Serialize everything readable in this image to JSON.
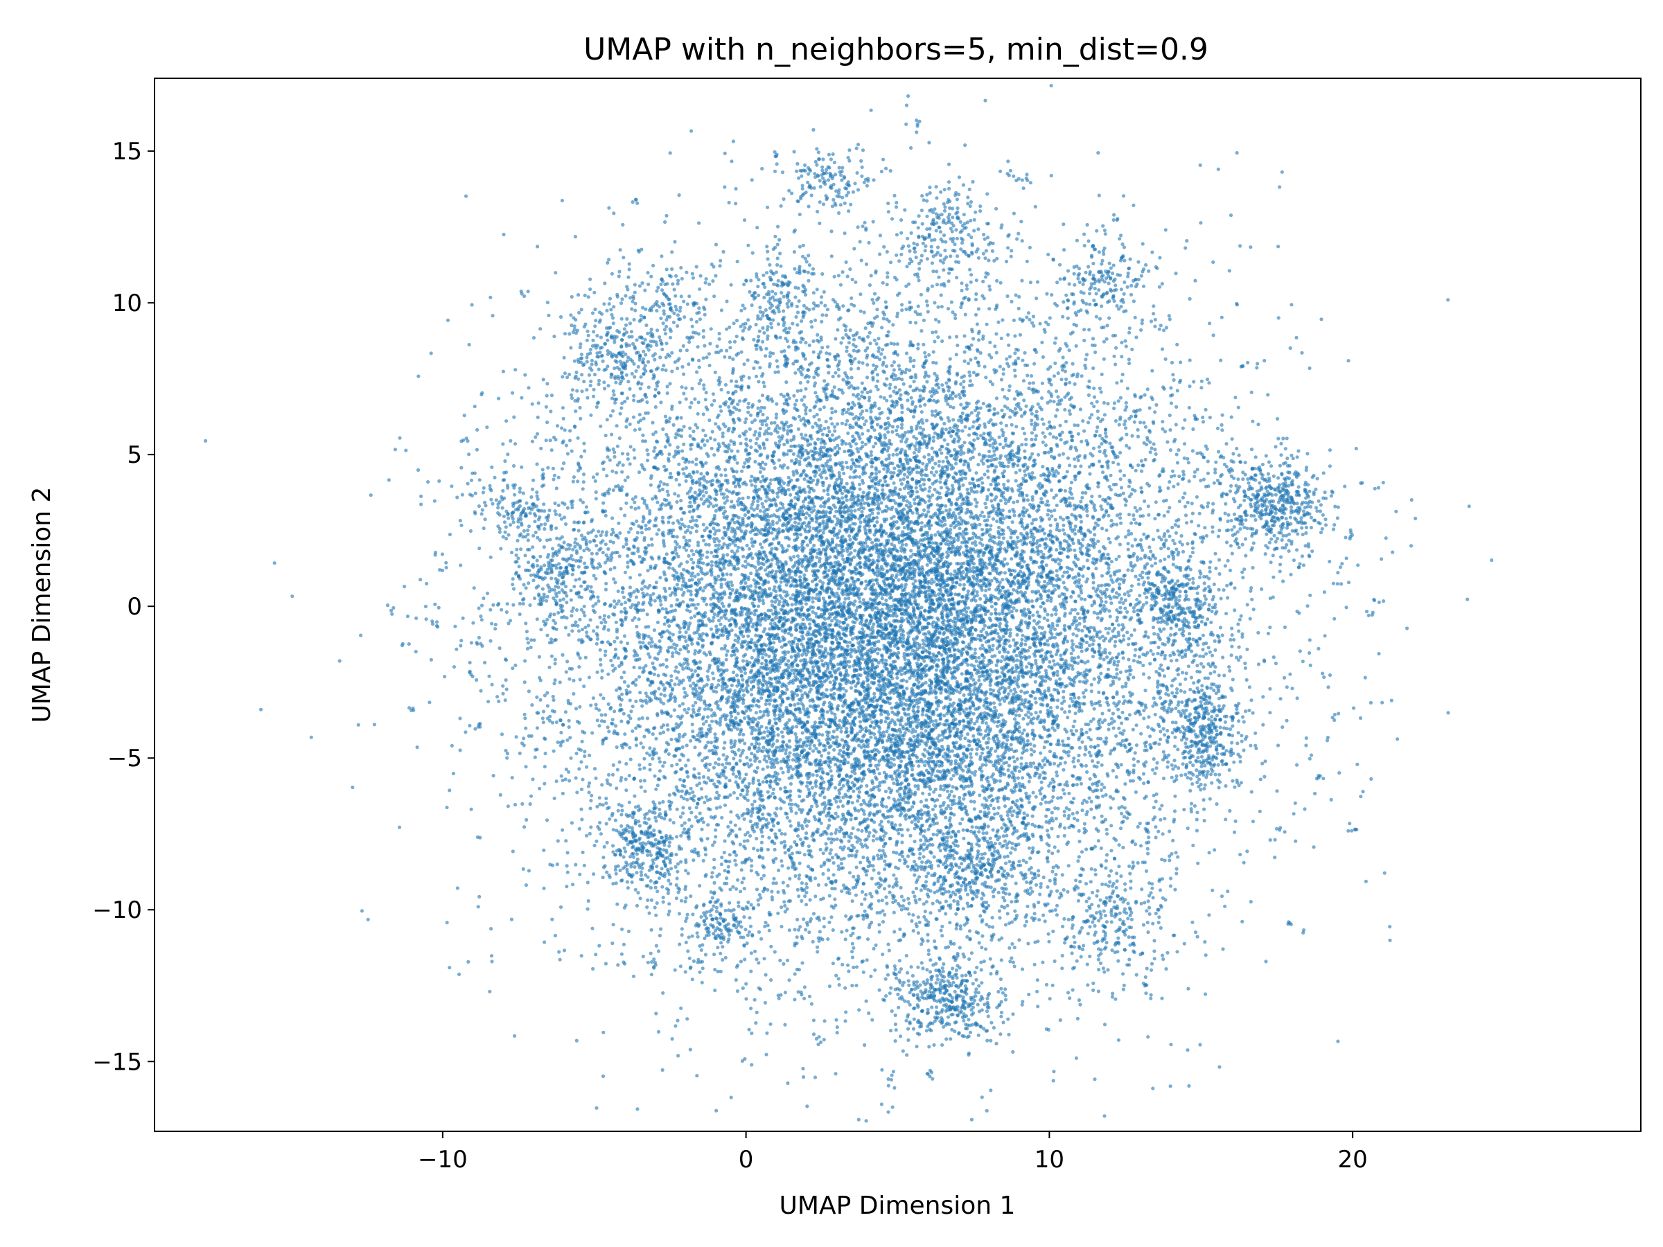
{
  "chart_data": {
    "type": "scatter",
    "title": "UMAP with n_neighbors=5, min_dist=0.9",
    "xlabel": "UMAP Dimension 1",
    "ylabel": "UMAP Dimension 2",
    "xlim": [
      -19.5,
      29.5
    ],
    "ylim": [
      -17.3,
      17.4
    ],
    "xticks": [
      -10,
      0,
      10,
      20
    ],
    "yticks": [
      -15,
      -10,
      -5,
      0,
      5,
      10,
      15
    ],
    "xtick_labels": [
      "−10",
      "0",
      "10",
      "20"
    ],
    "ytick_labels": [
      "−15",
      "−10",
      "−5",
      "0",
      "5",
      "10",
      "15"
    ],
    "grid": false,
    "legend": "none",
    "marker_color": "#1f77b4",
    "marker_alpha": 0.6,
    "series": [
      {
        "color": "#1f77b4",
        "description_points": "dense cloud centered near (4.5, -0.5) with radius ~10, plus satellite clusters",
        "main_cloud": {
          "center": [
            4.5,
            -0.5
          ],
          "sd": [
            4.6,
            4.6
          ],
          "count": 18000
        },
        "clusters": [
          {
            "center": [
              17.5,
              3.3
            ],
            "sd": [
              0.9,
              0.8
            ],
            "count": 450
          },
          {
            "center": [
              15.1,
              -4.2
            ],
            "sd": [
              0.6,
              0.9
            ],
            "count": 350
          },
          {
            "center": [
              14.3,
              0.0
            ],
            "sd": [
              0.7,
              1.0
            ],
            "count": 300
          },
          {
            "center": [
              6.6,
              -12.9
            ],
            "sd": [
              1.0,
              0.7
            ],
            "count": 350
          },
          {
            "center": [
              -3.3,
              -7.9
            ],
            "sd": [
              0.6,
              0.7
            ],
            "count": 250
          },
          {
            "center": [
              -4.3,
              8.3
            ],
            "sd": [
              0.9,
              0.9
            ],
            "count": 250
          },
          {
            "center": [
              -7.7,
              3.2
            ],
            "sd": [
              0.7,
              0.6
            ],
            "count": 120
          },
          {
            "center": [
              -6.2,
              1.0
            ],
            "sd": [
              0.9,
              0.9
            ],
            "count": 250
          },
          {
            "center": [
              2.6,
              14.1
            ],
            "sd": [
              0.7,
              0.5
            ],
            "count": 120
          },
          {
            "center": [
              6.5,
              12.3
            ],
            "sd": [
              0.9,
              0.9
            ],
            "count": 200
          },
          {
            "center": [
              11.8,
              10.8
            ],
            "sd": [
              0.7,
              0.7
            ],
            "count": 150
          },
          {
            "center": [
              12.1,
              -10.5
            ],
            "sd": [
              0.8,
              0.9
            ],
            "count": 200
          },
          {
            "center": [
              7.5,
              -8.8
            ],
            "sd": [
              1.0,
              1.0
            ],
            "count": 300
          },
          {
            "center": [
              -0.9,
              -10.4
            ],
            "sd": [
              0.5,
              0.5
            ],
            "count": 120
          },
          {
            "center": [
              1.2,
              10.2
            ],
            "sd": [
              0.7,
              0.8
            ],
            "count": 150
          },
          {
            "center": [
              -2.6,
              9.8
            ],
            "sd": [
              0.8,
              0.8
            ],
            "count": 120
          }
        ],
        "isolated_points": [
          [
            5.7,
            15.9
          ],
          [
            -3.7,
            13.3
          ],
          [
            -7.3,
            10.3
          ],
          [
            -11.7,
            -0.1
          ],
          [
            -11.0,
            -3.4
          ],
          [
            -10.0,
            1.3
          ],
          [
            -10.3,
            -0.6
          ],
          [
            -9.3,
            5.5
          ],
          [
            -9.1,
            -2.2
          ],
          [
            -8.8,
            -4.0
          ],
          [
            20.8,
            0.1
          ],
          [
            20.5,
            -0.2
          ],
          [
            20.0,
            2.3
          ],
          [
            19.4,
            -3.6
          ],
          [
            18.9,
            -5.7
          ],
          [
            17.9,
            -10.5
          ],
          [
            17.6,
            -7.4
          ],
          [
            20.1,
            -7.4
          ],
          [
            16.4,
            7.9
          ],
          [
            15.2,
            7.4
          ],
          [
            13.8,
            9.1
          ],
          [
            14.8,
            6.2
          ],
          [
            4.7,
            -15.6
          ],
          [
            6.1,
            -15.4
          ],
          [
            2.4,
            -14.3
          ],
          [
            -4.1,
            -11.7
          ],
          [
            -3.0,
            -11.8
          ],
          [
            -1.5,
            -11.7
          ],
          [
            1.1,
            -12.9
          ],
          [
            1.8,
            -12.7
          ],
          [
            8.6,
            14.3
          ],
          [
            9.2,
            14.1
          ],
          [
            0.9,
            14.9
          ],
          [
            12.2,
            12.8
          ],
          [
            13.1,
            -12.5
          ]
        ]
      }
    ]
  }
}
